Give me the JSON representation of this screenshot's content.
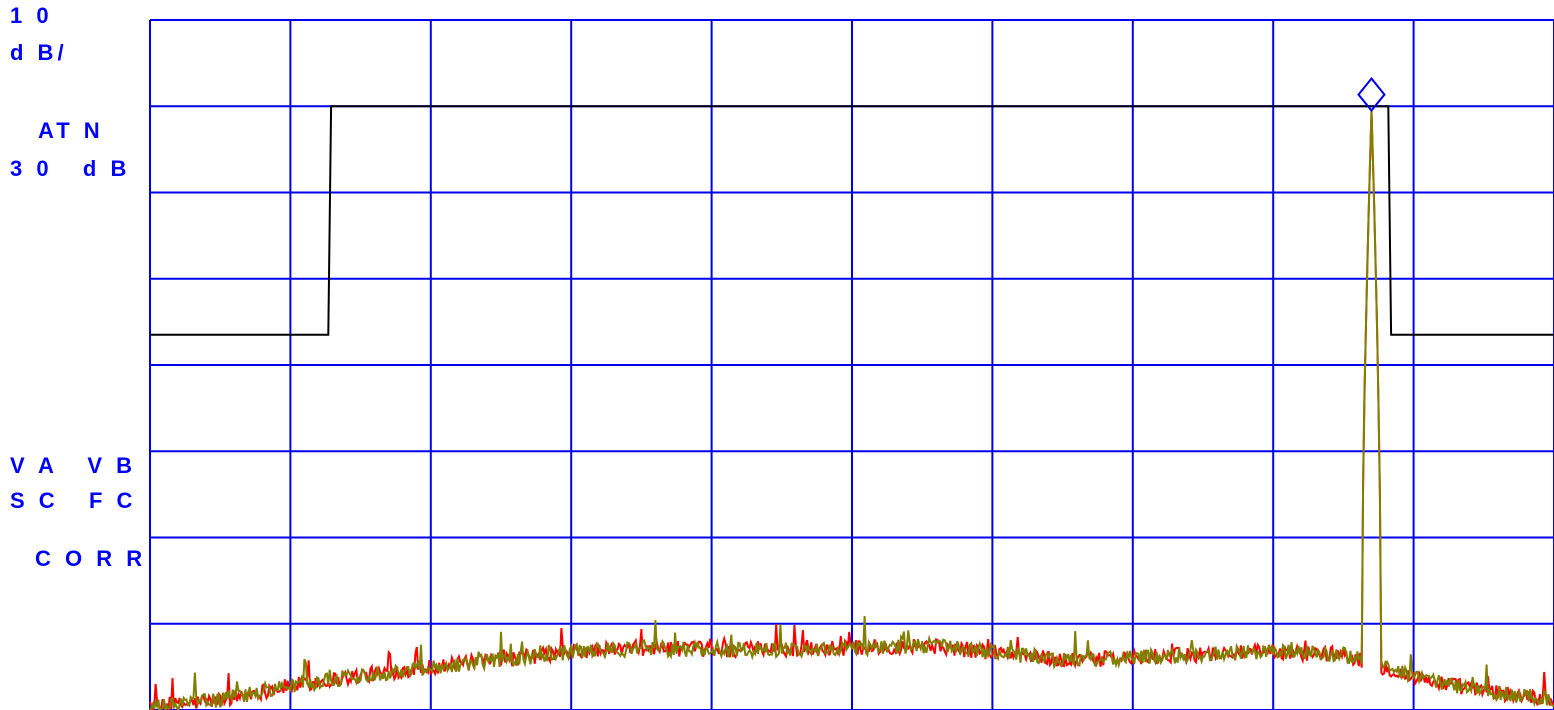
{
  "annotations": {
    "scale_value": "1 0",
    "scale_unit": "d B/",
    "atten_label": "AT N",
    "atten_value": "3 0   d B",
    "va_vb": "V A   V B",
    "sc_fc": "S C   F C",
    "corr": "C O R R"
  },
  "colors": {
    "grid": "#0000ee",
    "limit_line": "#000000",
    "trace_a": "#ff0000",
    "trace_b": "#808000",
    "text": "#0000ff"
  },
  "chart_data": {
    "type": "line",
    "title": "",
    "xlabel": "",
    "ylabel": "",
    "grid": true,
    "x_divisions": 10,
    "y_divisions": 8,
    "xlim": [
      0,
      10
    ],
    "ylim": [
      -8,
      0
    ],
    "limit_line": {
      "name": "",
      "points": [
        [
          0,
          -3.65
        ],
        [
          1.27,
          -3.65
        ],
        [
          1.29,
          -1.0
        ],
        [
          8.82,
          -1.0
        ],
        [
          8.84,
          -3.65
        ],
        [
          10,
          -3.65
        ]
      ]
    },
    "series": [
      {
        "color_key": "trace_a",
        "baseline_profile": {
          "x": [
            0,
            0.5,
            1,
            1.5,
            2,
            2.5,
            3,
            3.5,
            4,
            4.5,
            5,
            5.5,
            6,
            6.5,
            7,
            7.5,
            8,
            8.5,
            9,
            9.5,
            10
          ],
          "y": [
            -7.98,
            -7.88,
            -7.72,
            -7.6,
            -7.5,
            -7.42,
            -7.33,
            -7.28,
            -7.3,
            -7.3,
            -7.28,
            -7.25,
            -7.33,
            -7.42,
            -7.4,
            -7.35,
            -7.33,
            -7.35,
            -7.62,
            -7.78,
            -7.88
          ]
        },
        "peak": {
          "x": 8.7,
          "y": -1.05
        }
      },
      {
        "color_key": "trace_b",
        "baseline_profile": {
          "x": [
            0,
            0.5,
            1,
            1.5,
            2,
            2.5,
            3,
            3.5,
            4,
            4.5,
            5,
            5.5,
            6,
            6.5,
            7,
            7.5,
            8,
            8.5,
            9,
            9.5,
            10
          ],
          "y": [
            -7.98,
            -7.88,
            -7.72,
            -7.6,
            -7.5,
            -7.42,
            -7.33,
            -7.28,
            -7.3,
            -7.3,
            -7.28,
            -7.25,
            -7.33,
            -7.42,
            -7.4,
            -7.35,
            -7.33,
            -7.35,
            -7.62,
            -7.78,
            -7.88
          ]
        },
        "peak": {
          "x": 8.7,
          "y": -1.05
        }
      }
    ],
    "marker": {
      "shape": "diamond",
      "x": 8.7,
      "y": -1.05
    }
  }
}
